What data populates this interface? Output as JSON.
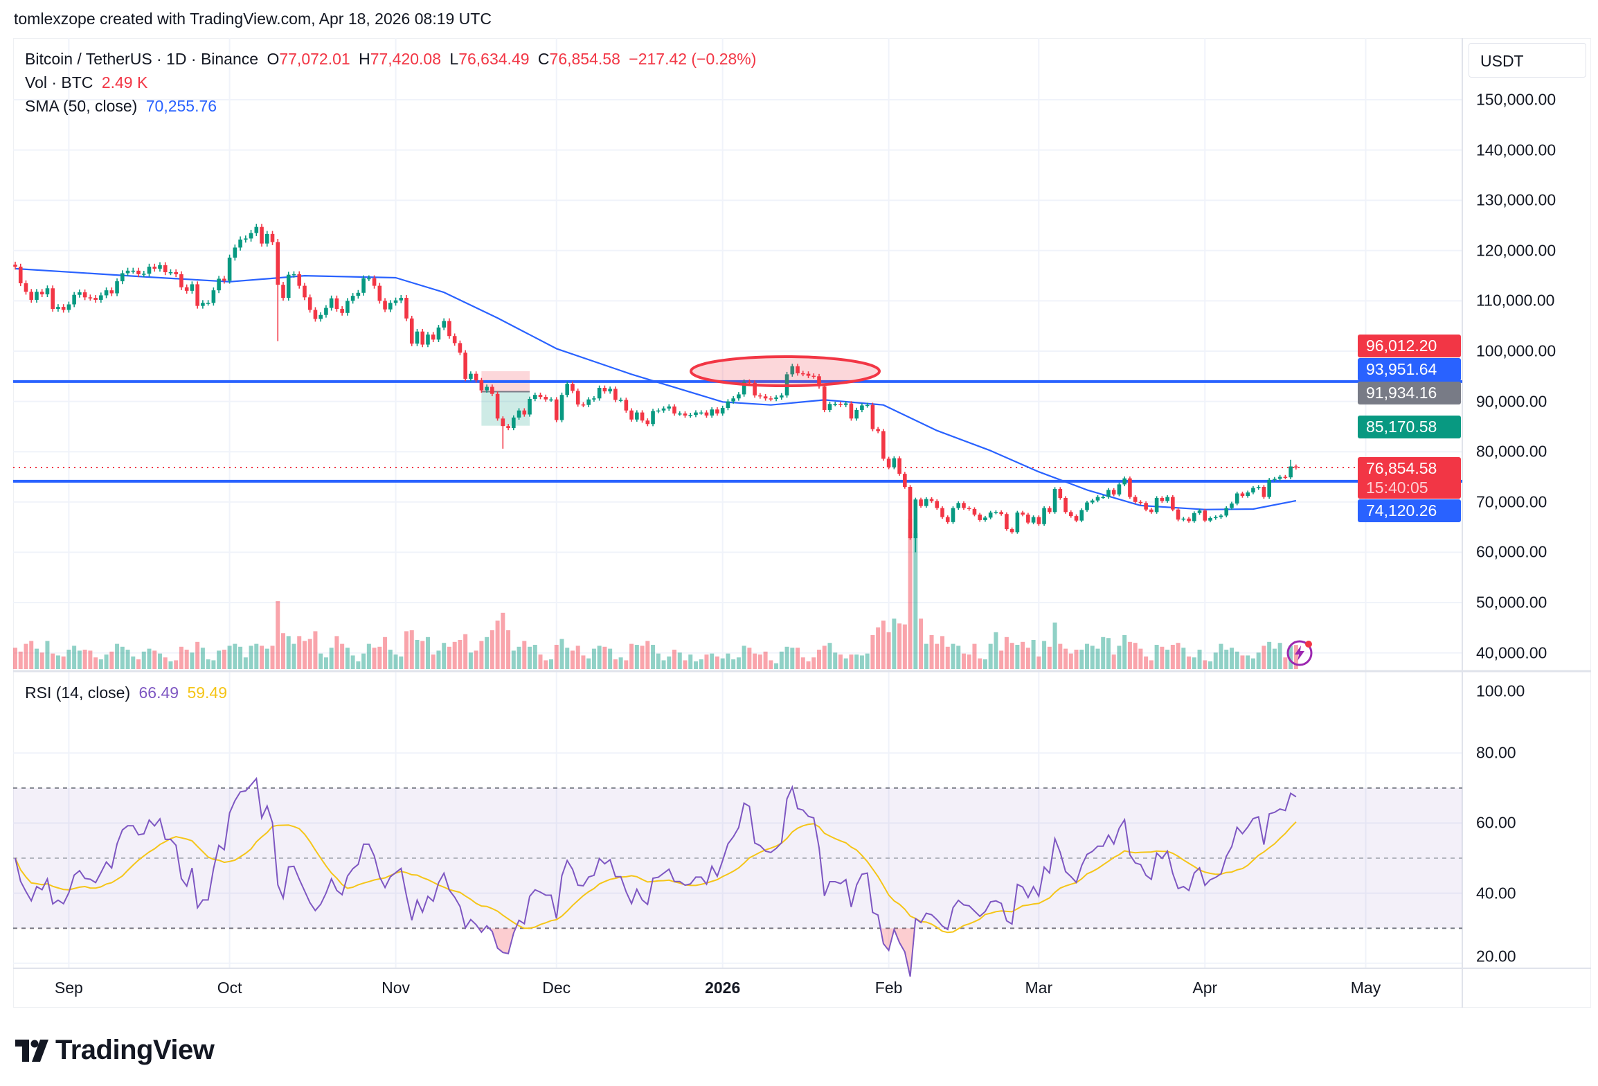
{
  "attribution": "tomlexzope created with TradingView.com, Apr 18, 2026 08:19 UTC",
  "legend": {
    "symbol": "Bitcoin / TetherUS · 1D · Binance",
    "open_label": "O",
    "open": "77,072.01",
    "high_label": "H",
    "high": "77,420.08",
    "low_label": "L",
    "low": "76,634.49",
    "close_label": "C",
    "close": "76,854.58",
    "change": "−217.42 (−0.28%)",
    "vol_label": "Vol · BTC",
    "vol_value": "2.49 K",
    "sma_label": "SMA (50, close)",
    "sma_value": "70,255.76",
    "rsi_label": "RSI (14, close)",
    "rsi_value": "66.49",
    "rsi_ma_value": "59.49"
  },
  "currency": "USDT",
  "price_axis": [
    "150,000.00",
    "140,000.00",
    "130,000.00",
    "120,000.00",
    "110,000.00",
    "100,000.00",
    "90,000.00",
    "80,000.00",
    "70,000.00",
    "60,000.00",
    "50,000.00",
    "40,000.00"
  ],
  "rsi_axis": [
    "100.00",
    "80.00",
    "60.00",
    "40.00",
    "20.00"
  ],
  "time_axis": [
    {
      "label": "Sep",
      "date": "2025-09-01",
      "bold": false
    },
    {
      "label": "Oct",
      "date": "2025-10-01",
      "bold": false
    },
    {
      "label": "Nov",
      "date": "2025-11-01",
      "bold": false
    },
    {
      "label": "Dec",
      "date": "2025-12-01",
      "bold": false
    },
    {
      "label": "2026",
      "date": "2026-01-01",
      "bold": true
    },
    {
      "label": "Feb",
      "date": "2026-02-01",
      "bold": false
    },
    {
      "label": "Mar",
      "date": "2026-03-01",
      "bold": false
    },
    {
      "label": "Apr",
      "date": "2026-04-01",
      "bold": false
    },
    {
      "label": "May",
      "date": "2026-05-01",
      "bold": false
    }
  ],
  "badges": {
    "stop": {
      "value": "96,012.20",
      "color": "#f23645"
    },
    "resistance": {
      "value": "93,951.64",
      "color": "#2962ff"
    },
    "entry": {
      "value": "91,934.16",
      "color": "#787b86"
    },
    "target": {
      "value": "85,170.58",
      "color": "#089981"
    },
    "last": {
      "value": "76,854.58",
      "countdown": "15:40:05",
      "color": "#f23645"
    },
    "support": {
      "value": "74,120.26",
      "color": "#2962ff"
    }
  },
  "branding": "TradingView",
  "colors": {
    "up": "#089981",
    "down": "#f23645",
    "sma": "#2962ff",
    "rsi": "#7e57c2",
    "rsi_ma": "#f5c518",
    "hline": "#2962ff"
  },
  "chart_data": {
    "type": "candlestick",
    "symbol": "BTCUSDT",
    "interval": "1D",
    "ylim": [
      40000,
      150000
    ],
    "grid": true,
    "first_open": 117200,
    "series_by_month": [
      {
        "month": "2025-08",
        "from_day": 22,
        "close": [
          116800,
          113500,
          111800,
          110200,
          111800,
          111300,
          112500,
          108400,
          108800,
          108200
        ],
        "volume_k_btc": [
          2.2,
          1.8,
          2.6,
          2.9,
          2.1,
          1.7,
          2.9,
          1.6,
          1.4,
          1.3
        ]
      },
      {
        "month": "2025-09",
        "from_day": 1,
        "close": [
          109300,
          111200,
          111700,
          110700,
          110600,
          110200,
          111100,
          112100,
          111500,
          113900,
          115500,
          116000,
          116000,
          115300,
          115400,
          116800,
          116400,
          117100,
          115700,
          115700,
          115300,
          112700,
          112000,
          113300,
          109000,
          109600,
          109600,
          112100,
          114400,
          114000
        ],
        "volume_k_btc": [
          2.0,
          2.4,
          1.9,
          2.0,
          1.9,
          1.2,
          1.0,
          1.5,
          1.8,
          2.6,
          2.3,
          2.0,
          1.3,
          1.0,
          1.8,
          2.1,
          1.9,
          1.6,
          1.2,
          0.8,
          0.9,
          2.3,
          2.0,
          1.7,
          2.8,
          2.2,
          1.0,
          0.9,
          1.9,
          2.0
        ]
      },
      {
        "month": "2025-10",
        "from_day": 1,
        "close": [
          118600,
          120600,
          122200,
          122400,
          123500,
          124700,
          121400,
          123300,
          121700,
          113200,
          110600,
          115200,
          115300,
          113000,
          110700,
          108200,
          106400,
          107200,
          108600,
          110500,
          108400,
          107600,
          110000,
          111000,
          111600,
          114500,
          114500,
          113000,
          110000,
          108300,
          109600
        ],
        "volume_k_btc": [
          2.4,
          2.6,
          2.3,
          1.2,
          2.4,
          2.6,
          2.4,
          2.1,
          2.4,
          7.0,
          3.7,
          3.4,
          2.6,
          3.4,
          2.9,
          3.1,
          3.9,
          1.6,
          1.2,
          2.2,
          3.4,
          2.6,
          2.2,
          1.4,
          0.8,
          1.6,
          2.6,
          2.2,
          2.3,
          3.3,
          2.0
        ]
      },
      {
        "month": "2025-11",
        "from_day": 1,
        "close": [
          110100,
          110600,
          106500,
          101500,
          103900,
          101300,
          103300,
          102300,
          104700,
          106000,
          103000,
          101600,
          99700,
          94500,
          95500,
          94200,
          92200,
          92900,
          91500,
          86600,
          85100,
          84700,
          86800,
          88200,
          87400,
          90500,
          91300,
          90900,
          90400,
          90400
        ],
        "volume_k_btc": [
          1.5,
          1.3,
          3.9,
          4.0,
          3.0,
          2.9,
          3.3,
          1.5,
          1.9,
          2.7,
          2.3,
          2.8,
          3.0,
          3.6,
          1.7,
          1.9,
          2.9,
          3.3,
          4.0,
          5.0,
          5.8,
          4.0,
          1.9,
          2.3,
          2.9,
          2.3,
          2.5,
          1.5,
          0.9,
          1.0
        ]
      },
      {
        "month": "2025-12",
        "from_day": 1,
        "close": [
          86300,
          91300,
          93500,
          92100,
          89400,
          89300,
          90400,
          90600,
          92700,
          92000,
          92500,
          90300,
          90300,
          88200,
          86400,
          87800,
          86200,
          85500,
          88100,
          88200,
          88600,
          89000,
          87600,
          87600,
          87200,
          87300,
          87800,
          87800,
          87200,
          88400,
          87600
        ],
        "volume_k_btc": [
          2.5,
          3.1,
          2.2,
          1.9,
          2.4,
          1.4,
          1.1,
          2.1,
          2.4,
          2.3,
          2.1,
          1.0,
          1.2,
          0.9,
          2.6,
          2.5,
          2.4,
          2.9,
          2.5,
          1.6,
          0.9,
          1.3,
          2.0,
          1.7,
          0.9,
          1.5,
          0.8,
          1.0,
          1.5,
          1.6,
          1.3
        ]
      },
      {
        "month": "2026-01",
        "from_day": 1,
        "close": [
          88700,
          90000,
          90600,
          91400,
          93900,
          93700,
          91200,
          91000,
          90600,
          90500,
          90800,
          91200,
          95400,
          97000,
          95600,
          95500,
          95100,
          95000,
          93000,
          88300,
          89500,
          89500,
          89300,
          89600,
          86600,
          88300,
          89200,
          89300,
          84500,
          84100,
          78600
        ],
        "volume_k_btc": [
          1.1,
          1.6,
          1.0,
          1.2,
          2.4,
          2.2,
          1.6,
          1.5,
          1.8,
          0.9,
          0.6,
          1.8,
          2.3,
          2.2,
          2.2,
          1.2,
          0.8,
          1.2,
          2.0,
          2.4,
          2.7,
          1.7,
          1.5,
          1.1,
          1.5,
          1.5,
          1.4,
          1.6,
          3.5,
          4.3,
          5.0
        ]
      },
      {
        "month": "2026-02",
        "from_day": 1,
        "close": [
          76900,
          78700,
          75600,
          73000,
          62800,
          70500,
          69200,
          70600,
          70200,
          68800,
          67000,
          66000,
          68800,
          69800,
          68800,
          68600,
          67500,
          66400,
          66900,
          67900,
          68000,
          67600,
          64600,
          64000,
          67900,
          67500,
          65900,
          67000
        ],
        "volume_k_btc": [
          3.8,
          5.2,
          4.7,
          4.6,
          15.5,
          14.0,
          5.2,
          2.6,
          3.5,
          2.6,
          3.4,
          2.3,
          2.6,
          2.4,
          1.6,
          1.5,
          2.6,
          1.1,
          1.0,
          2.6,
          3.8,
          1.9,
          3.3,
          2.7,
          2.5,
          2.8,
          2.2,
          3.0
        ]
      },
      {
        "month": "2026-03",
        "from_day": 1,
        "close": [
          65600,
          68800,
          68000,
          72600,
          70800,
          68000,
          67200,
          66300,
          68400,
          69900,
          70300,
          71000,
          71000,
          72400,
          71500,
          73500,
          74700,
          71000,
          70000,
          69800,
          68500,
          68000,
          70800,
          70200,
          71000,
          68500,
          66500,
          66700,
          66200,
          67800,
          68300
        ],
        "volume_k_btc": [
          1.3,
          2.9,
          2.3,
          4.8,
          2.6,
          2.1,
          1.6,
          2.0,
          2.0,
          2.6,
          2.4,
          2.1,
          3.3,
          3.2,
          1.5,
          2.4,
          3.5,
          2.8,
          2.7,
          2.1,
          1.3,
          0.9,
          2.5,
          2.3,
          2.0,
          2.5,
          2.7,
          2.2,
          1.3,
          1.2,
          2.0
        ]
      },
      {
        "month": "2026-04",
        "from_day": 1,
        "close": [
          66300,
          66800,
          67000,
          67300,
          68800,
          69700,
          71700,
          71200,
          71900,
          72800,
          73000,
          71000,
          74400,
          74600,
          75000,
          74900,
          77070,
          76854.58
        ],
        "volume_k_btc": [
          0.9,
          0.8,
          1.7,
          2.6,
          2.0,
          2.2,
          1.8,
          1.4,
          1.4,
          1.1,
          1.7,
          2.4,
          2.8,
          2.1,
          2.7,
          1.2,
          2.4,
          2.49
        ]
      }
    ],
    "notable_wicks": [
      {
        "date": "2025-10-10",
        "low": 102000
      },
      {
        "date": "2025-11-21",
        "low": 80600
      },
      {
        "date": "2026-02-06",
        "low": 60000
      },
      {
        "date": "2026-04-17",
        "high": 78400
      }
    ],
    "sma50": [
      {
        "date": "2025-08-22",
        "value": 116400
      },
      {
        "date": "2025-09-15",
        "value": 114800
      },
      {
        "date": "2025-10-01",
        "value": 113800
      },
      {
        "date": "2025-10-15",
        "value": 115000
      },
      {
        "date": "2025-11-01",
        "value": 114600
      },
      {
        "date": "2025-11-10",
        "value": 111700
      },
      {
        "date": "2025-11-20",
        "value": 106600
      },
      {
        "date": "2025-12-01",
        "value": 100500
      },
      {
        "date": "2025-12-15",
        "value": 95400
      },
      {
        "date": "2026-01-01",
        "value": 89900
      },
      {
        "date": "2026-01-10",
        "value": 89300
      },
      {
        "date": "2026-01-20",
        "value": 90300
      },
      {
        "date": "2026-01-31",
        "value": 89300
      },
      {
        "date": "2026-02-10",
        "value": 84200
      },
      {
        "date": "2026-02-20",
        "value": 80200
      },
      {
        "date": "2026-03-01",
        "value": 76000
      },
      {
        "date": "2026-03-10",
        "value": 72400
      },
      {
        "date": "2026-03-20",
        "value": 69300
      },
      {
        "date": "2026-04-01",
        "value": 68500
      },
      {
        "date": "2026-04-10",
        "value": 68600
      },
      {
        "date": "2026-04-18",
        "value": 70255.76
      }
    ],
    "horizontal_levels": [
      93951.64,
      74120.26
    ],
    "last_price": 76854.58,
    "position": {
      "from": "2025-11-17",
      "to": "2025-11-26",
      "stop": 96012.2,
      "entry": 91934.16,
      "target": 85170.58
    },
    "rsi": {
      "period": 14,
      "ma_period": 14,
      "upper": 70,
      "middle": 50,
      "lower": 30,
      "ylim": [
        20,
        100
      ]
    }
  }
}
